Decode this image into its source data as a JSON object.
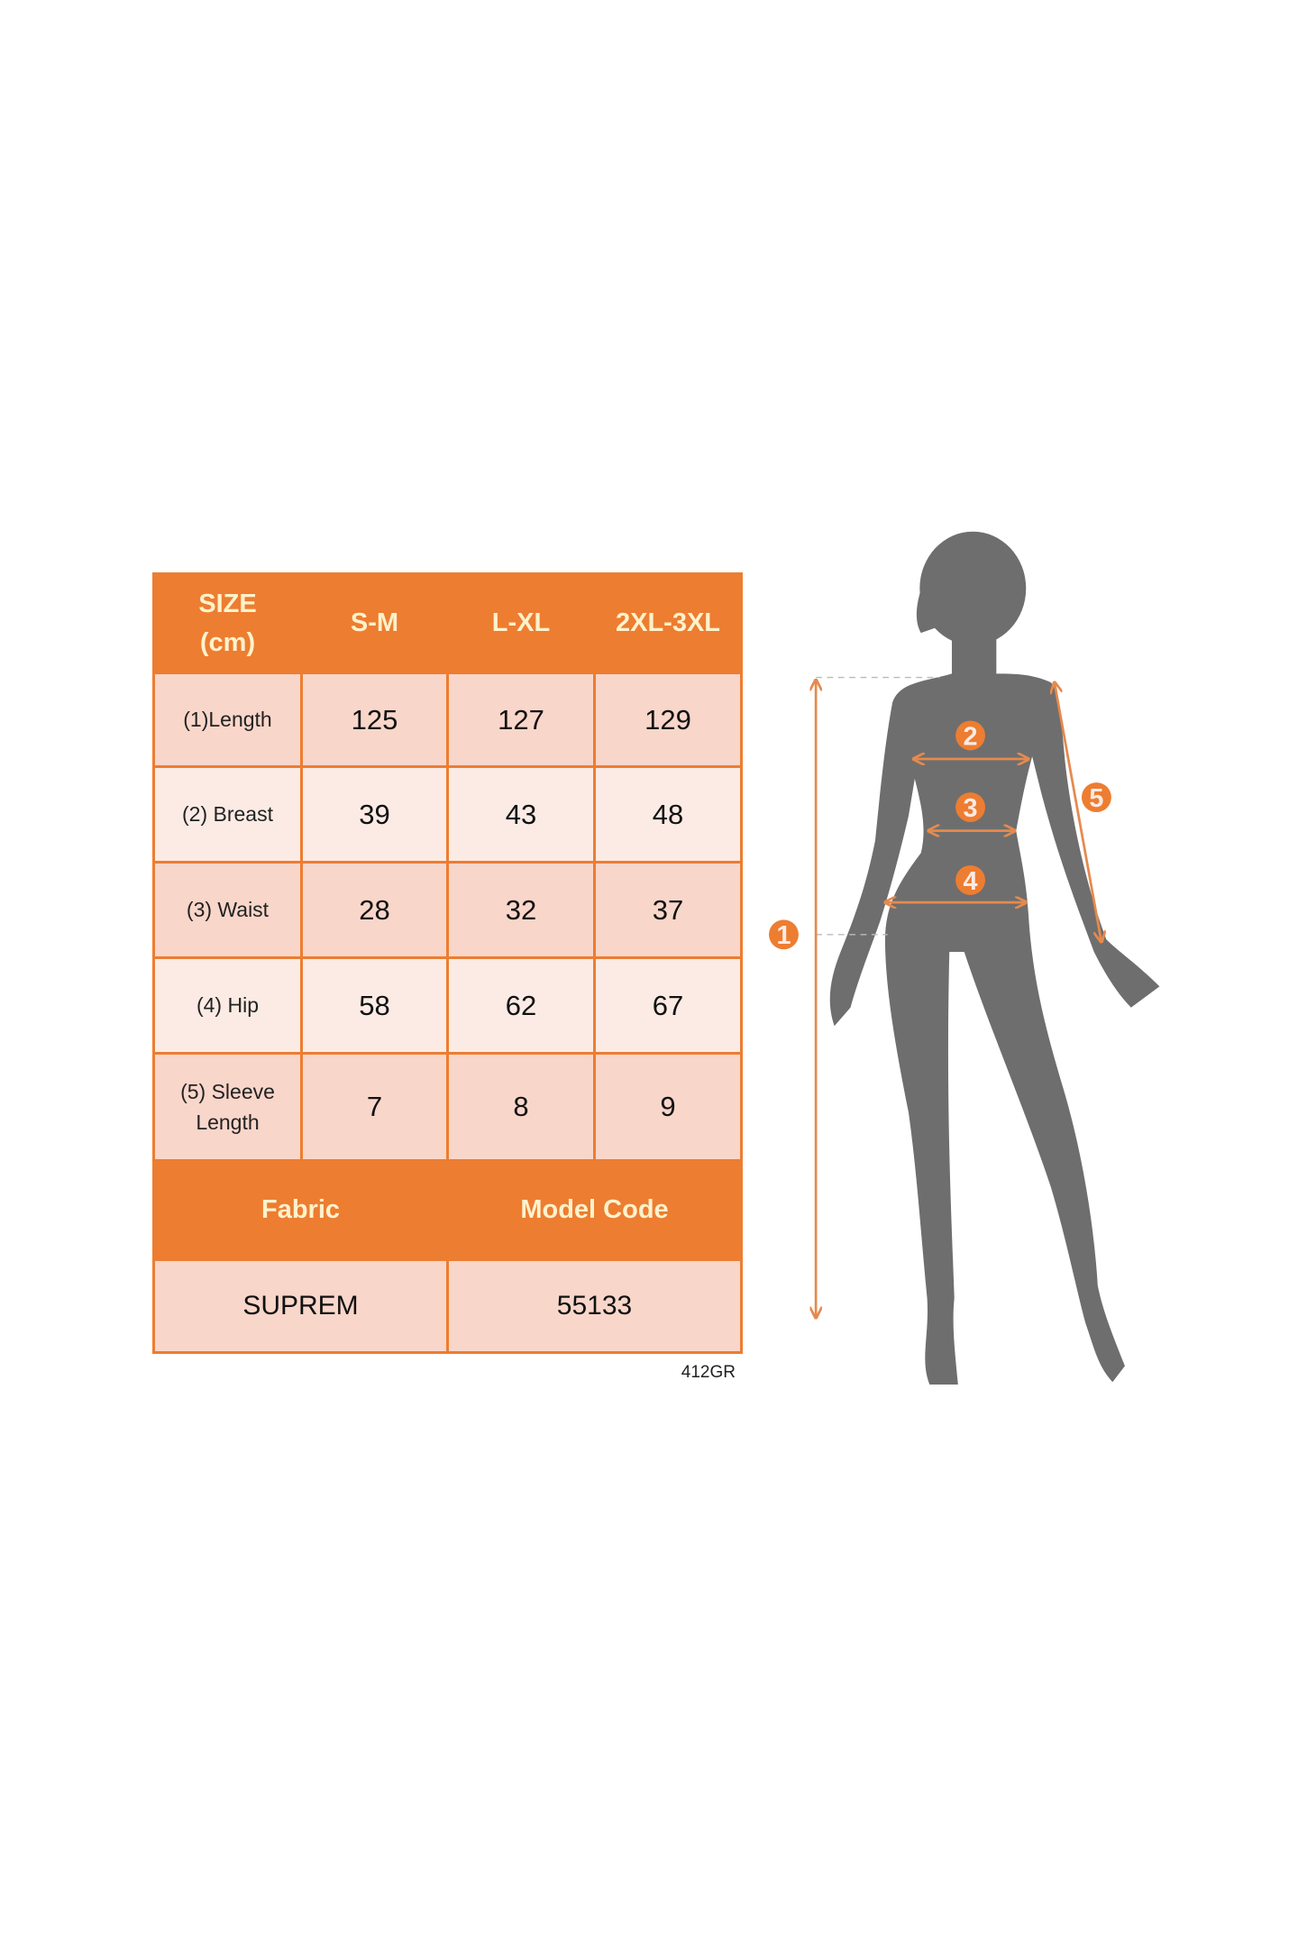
{
  "table": {
    "header": [
      "SIZE\n(cm)",
      "S-M",
      "L-XL",
      "2XL-3XL"
    ],
    "rows": [
      {
        "label": "(1)Length",
        "values": [
          "125",
          "127",
          "129"
        ]
      },
      {
        "label": "(2) Breast",
        "values": [
          "39",
          "43",
          "48"
        ]
      },
      {
        "label": "(3) Waist",
        "values": [
          "28",
          "32",
          "37"
        ]
      },
      {
        "label": "(4) Hip",
        "values": [
          "58",
          "62",
          "67"
        ]
      },
      {
        "label": "(5) Sleeve\nLength",
        "values": [
          "7",
          "8",
          "9"
        ]
      }
    ],
    "footer_header": [
      "Fabric",
      "Model Code"
    ],
    "footer_values": [
      "SUPREM",
      "55133"
    ]
  },
  "code_note": "412GR",
  "figure": {
    "markers": [
      "1",
      "2",
      "3",
      "4",
      "5"
    ]
  },
  "colors": {
    "accent": "#ED7D31",
    "row_dark": "#F9D6CA",
    "row_light": "#FCEBE5",
    "header_text": "#FFF2CC",
    "silhouette": "#6E6E6E"
  }
}
